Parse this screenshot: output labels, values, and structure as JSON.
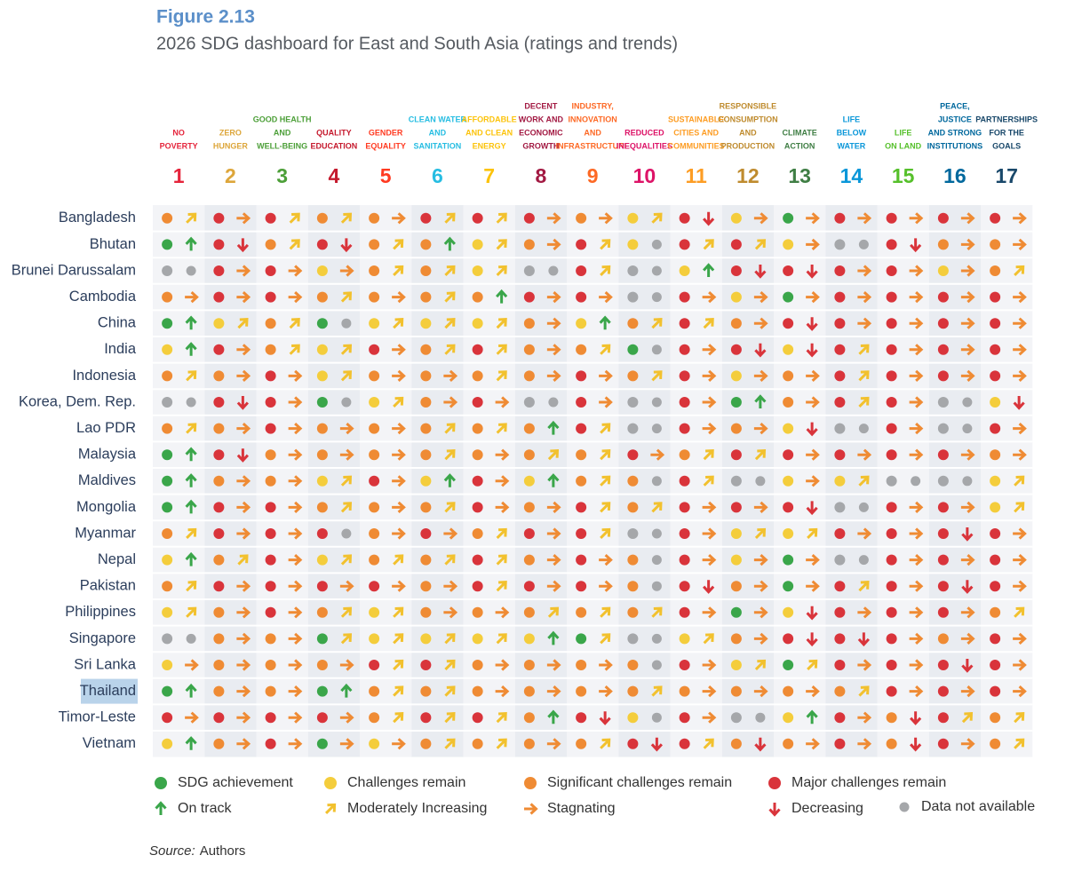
{
  "figure_label": "Figure 2.13",
  "title": "2026 SDG dashboard for East and South Asia (ratings and trends)",
  "rating_colors": {
    "g": "#3aa64a",
    "y": "#f4cd3c",
    "o": "#ef8b34",
    "r": "#d9343b",
    "n": "#a5a7aa"
  },
  "trend_colors": {
    "U": "#3aa64a",
    "M": "#f2c12e",
    "S": "#ef8b34",
    "D": "#d9343b",
    "N": "#a5a7aa"
  },
  "goals": [
    {
      "number": 1,
      "name_lines": [
        "NO",
        "POVERTY"
      ],
      "color": "#e5243b"
    },
    {
      "number": 2,
      "name_lines": [
        "ZERO",
        "HUNGER"
      ],
      "color": "#dda63a"
    },
    {
      "number": 3,
      "name_lines": [
        "GOOD HEALTH",
        "AND",
        "WELL-BEING"
      ],
      "color": "#4c9f38"
    },
    {
      "number": 4,
      "name_lines": [
        "QUALITY",
        "EDUCATION"
      ],
      "color": "#c5192d"
    },
    {
      "number": 5,
      "name_lines": [
        "GENDER",
        "EQUALITY"
      ],
      "color": "#ff3a21"
    },
    {
      "number": 6,
      "name_lines": [
        "CLEAN WATER",
        "AND",
        "SANITATION"
      ],
      "color": "#26bde2"
    },
    {
      "number": 7,
      "name_lines": [
        "AFFORDABLE",
        "AND CLEAN",
        "ENERGY"
      ],
      "color": "#fcc30b"
    },
    {
      "number": 8,
      "name_lines": [
        "DECENT",
        "WORK AND",
        "ECONOMIC",
        "GROWTH"
      ],
      "color": "#a21942"
    },
    {
      "number": 9,
      "name_lines": [
        "INDUSTRY,",
        "INNOVATION",
        "AND",
        "INFRASTRUCTURE"
      ],
      "color": "#fd6925"
    },
    {
      "number": 10,
      "name_lines": [
        "REDUCED",
        "INEQUALITIES"
      ],
      "color": "#dd1367"
    },
    {
      "number": 11,
      "name_lines": [
        "SUSTAINABLE",
        "CITIES AND",
        "COMMUNITIES"
      ],
      "color": "#fd9d24"
    },
    {
      "number": 12,
      "name_lines": [
        "RESPONSIBLE",
        "CONSUMPTION",
        "AND",
        "PRODUCTION"
      ],
      "color": "#bf8b2e"
    },
    {
      "number": 13,
      "name_lines": [
        "CLIMATE",
        "ACTION"
      ],
      "color": "#3f7e44"
    },
    {
      "number": 14,
      "name_lines": [
        "LIFE",
        "BELOW",
        "WATER"
      ],
      "color": "#0a97d9"
    },
    {
      "number": 15,
      "name_lines": [
        "LIFE",
        "ON LAND"
      ],
      "color": "#56c02b"
    },
    {
      "number": 16,
      "name_lines": [
        "PEACE,",
        "JUSTICE",
        "AND STRONG",
        "INSTITUTIONS"
      ],
      "color": "#00689d"
    },
    {
      "number": 17,
      "name_lines": [
        "PARTNERSHIPS",
        "FOR THE",
        "GOALS"
      ],
      "color": "#19486a"
    }
  ],
  "rows": [
    {
      "country": "Bangladesh",
      "cells": [
        "oM",
        "rS",
        "rM",
        "oM",
        "oS",
        "rM",
        "rM",
        "rS",
        "oS",
        "yM",
        "rD",
        "yS",
        "gS",
        "rS",
        "rS",
        "rS",
        "rS"
      ]
    },
    {
      "country": "Bhutan",
      "cells": [
        "gU",
        "rD",
        "oM",
        "rD",
        "oM",
        "oU",
        "yM",
        "oS",
        "rM",
        "yN",
        "rM",
        "rM",
        "yS",
        "nN",
        "rD",
        "oS",
        "oS"
      ]
    },
    {
      "country": "Brunei Darussalam",
      "cells": [
        "nN",
        "rS",
        "rS",
        "yS",
        "oM",
        "oM",
        "yM",
        "nN",
        "rM",
        "nN",
        "yU",
        "rD",
        "rD",
        "rS",
        "rS",
        "yS",
        "oM"
      ]
    },
    {
      "country": "Cambodia",
      "cells": [
        "oS",
        "rS",
        "rS",
        "oM",
        "oS",
        "oM",
        "oU",
        "rS",
        "rS",
        "nN",
        "rS",
        "yS",
        "gS",
        "rS",
        "rS",
        "rS",
        "rS"
      ]
    },
    {
      "country": "China",
      "cells": [
        "gU",
        "yM",
        "oM",
        "gN",
        "yM",
        "yM",
        "yM",
        "oS",
        "yU",
        "oM",
        "rM",
        "oS",
        "rD",
        "rS",
        "rS",
        "rS",
        "rS"
      ]
    },
    {
      "country": "India",
      "cells": [
        "yU",
        "rS",
        "oM",
        "yM",
        "rS",
        "oM",
        "rM",
        "oS",
        "oM",
        "gN",
        "rS",
        "rD",
        "yD",
        "rM",
        "rS",
        "rS",
        "rS"
      ]
    },
    {
      "country": "Indonesia",
      "cells": [
        "oM",
        "oS",
        "rS",
        "yM",
        "oS",
        "oS",
        "oM",
        "oS",
        "rS",
        "oM",
        "rS",
        "yS",
        "oS",
        "rM",
        "rS",
        "rS",
        "rS"
      ]
    },
    {
      "country": "Korea, Dem. Rep.",
      "cells": [
        "nN",
        "rD",
        "rS",
        "gN",
        "yM",
        "oS",
        "rS",
        "nN",
        "rS",
        "nN",
        "rS",
        "gU",
        "oS",
        "rM",
        "rS",
        "nN",
        "yD"
      ]
    },
    {
      "country": "Lao PDR",
      "cells": [
        "oM",
        "oS",
        "rS",
        "oS",
        "oS",
        "oM",
        "oM",
        "oU",
        "rM",
        "nN",
        "rS",
        "oS",
        "yD",
        "nN",
        "rS",
        "nN",
        "rS"
      ]
    },
    {
      "country": "Malaysia",
      "cells": [
        "gU",
        "rD",
        "oS",
        "oS",
        "oS",
        "oM",
        "oS",
        "oM",
        "oM",
        "rS",
        "oM",
        "rM",
        "rS",
        "rS",
        "rS",
        "rS",
        "oS"
      ]
    },
    {
      "country": "Maldives",
      "cells": [
        "gU",
        "oS",
        "oS",
        "yM",
        "rS",
        "yU",
        "rS",
        "yU",
        "oM",
        "oN",
        "rM",
        "nN",
        "yS",
        "yM",
        "nN",
        "nN",
        "yM"
      ]
    },
    {
      "country": "Mongolia",
      "cells": [
        "gU",
        "rS",
        "rS",
        "oM",
        "oS",
        "oM",
        "rS",
        "oS",
        "rM",
        "oM",
        "rS",
        "rS",
        "rD",
        "nN",
        "rS",
        "rS",
        "yM"
      ]
    },
    {
      "country": "Myanmar",
      "cells": [
        "oM",
        "rS",
        "rS",
        "rN",
        "oS",
        "rS",
        "oM",
        "rS",
        "rM",
        "nN",
        "rS",
        "yM",
        "yM",
        "rS",
        "rS",
        "rD",
        "rS"
      ]
    },
    {
      "country": "Nepal",
      "cells": [
        "yU",
        "oM",
        "rS",
        "yM",
        "oM",
        "oM",
        "rM",
        "oS",
        "rS",
        "oN",
        "rS",
        "yS",
        "gS",
        "nN",
        "rS",
        "rS",
        "rS"
      ]
    },
    {
      "country": "Pakistan",
      "cells": [
        "oM",
        "rS",
        "rS",
        "rS",
        "rS",
        "oS",
        "rM",
        "rS",
        "rS",
        "oN",
        "rD",
        "oS",
        "gS",
        "rM",
        "rS",
        "rD",
        "rS"
      ]
    },
    {
      "country": "Philippines",
      "cells": [
        "yM",
        "oS",
        "rS",
        "oM",
        "yM",
        "oS",
        "oS",
        "oM",
        "oM",
        "oM",
        "rS",
        "gS",
        "yD",
        "rS",
        "rS",
        "rS",
        "oM"
      ]
    },
    {
      "country": "Singapore",
      "cells": [
        "nN",
        "oS",
        "oS",
        "gM",
        "yM",
        "yM",
        "yM",
        "yU",
        "gM",
        "nN",
        "yM",
        "oS",
        "rD",
        "rD",
        "rS",
        "oS",
        "rS"
      ]
    },
    {
      "country": "Sri Lanka",
      "cells": [
        "yS",
        "oS",
        "oS",
        "oS",
        "rM",
        "rM",
        "oS",
        "oS",
        "oS",
        "oN",
        "rS",
        "yM",
        "gM",
        "rS",
        "rS",
        "rD",
        "rS"
      ]
    },
    {
      "country": "Thailand",
      "cells": [
        "gU",
        "oS",
        "oS",
        "gU",
        "oM",
        "oM",
        "oS",
        "oS",
        "oS",
        "oM",
        "oS",
        "oS",
        "oS",
        "oM",
        "rS",
        "rS",
        "rS"
      ],
      "highlight": true
    },
    {
      "country": "Timor-Leste",
      "cells": [
        "rS",
        "rS",
        "rS",
        "rS",
        "oM",
        "rM",
        "rM",
        "oU",
        "rD",
        "yN",
        "rS",
        "nN",
        "yU",
        "rS",
        "oD",
        "rM",
        "oM"
      ]
    },
    {
      "country": "Vietnam",
      "cells": [
        "yU",
        "oS",
        "rS",
        "gS",
        "yS",
        "oM",
        "oM",
        "oS",
        "oM",
        "rD",
        "rM",
        "oD",
        "oS",
        "rS",
        "oD",
        "rS",
        "oM"
      ]
    }
  ],
  "legend": [
    {
      "label": "SDG achievement",
      "rating": "g"
    },
    {
      "label": "Challenges remain",
      "rating": "y"
    },
    {
      "label": "Significant challenges remain",
      "rating": "o"
    },
    {
      "label": "Major challenges remain",
      "rating": "r"
    },
    {
      "label": "On track",
      "trend": "U"
    },
    {
      "label": "Moderately Increasing",
      "trend": "M"
    },
    {
      "label": "Stagnating",
      "trend": "S"
    },
    {
      "label": "Decreasing",
      "trend": "D"
    },
    {
      "label": "Data not available",
      "trend": "N"
    }
  ],
  "source_label": "Source:",
  "source_text": "Authors"
}
